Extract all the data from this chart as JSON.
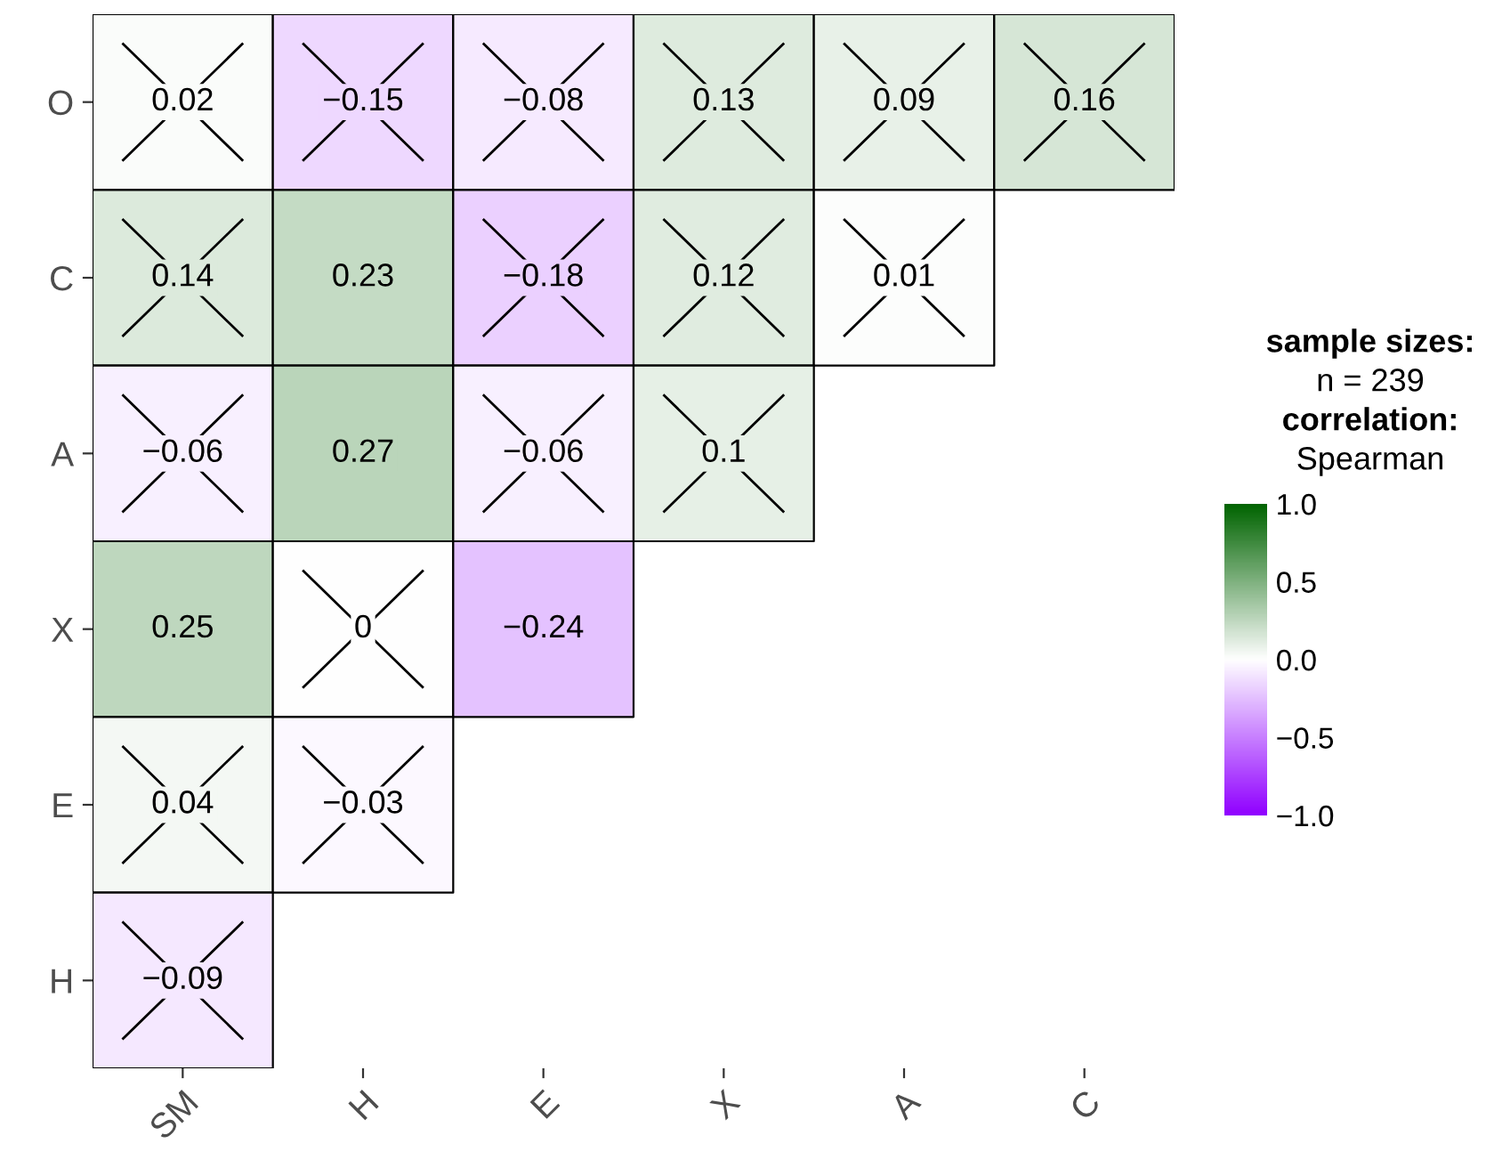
{
  "chart_data": {
    "type": "heatmap",
    "categories": [
      "SM",
      "H",
      "E",
      "X",
      "A",
      "C"
    ],
    "y_categories": [
      "O",
      "C",
      "A",
      "X",
      "E",
      "H"
    ],
    "cells": [
      [
        0.02,
        -0.15,
        -0.08,
        0.13,
        0.09,
        0.16
      ],
      [
        0.14,
        0.23,
        -0.18,
        0.12,
        0.01,
        null
      ],
      [
        -0.06,
        0.27,
        -0.06,
        0.1,
        null,
        null
      ],
      [
        0.25,
        0,
        -0.24,
        null,
        null,
        null
      ],
      [
        0.04,
        -0.03,
        null,
        null,
        null,
        null
      ],
      [
        -0.09,
        null,
        null,
        null,
        null,
        null
      ]
    ],
    "data_labels": true,
    "clim": [
      -1.0,
      1.0
    ],
    "cticks": [
      {
        "value": 1.0,
        "label": "1.0"
      },
      {
        "value": 0.5,
        "label": "0.5"
      },
      {
        "value": 0.0,
        "label": "0.0"
      },
      {
        "value": -0.5,
        "label": "−0.5"
      },
      {
        "value": -1.0,
        "label": "−1.0"
      }
    ],
    "annotations": [
      "sample sizes:",
      "n = 239",
      "correlation:",
      "Spearman"
    ]
  }
}
